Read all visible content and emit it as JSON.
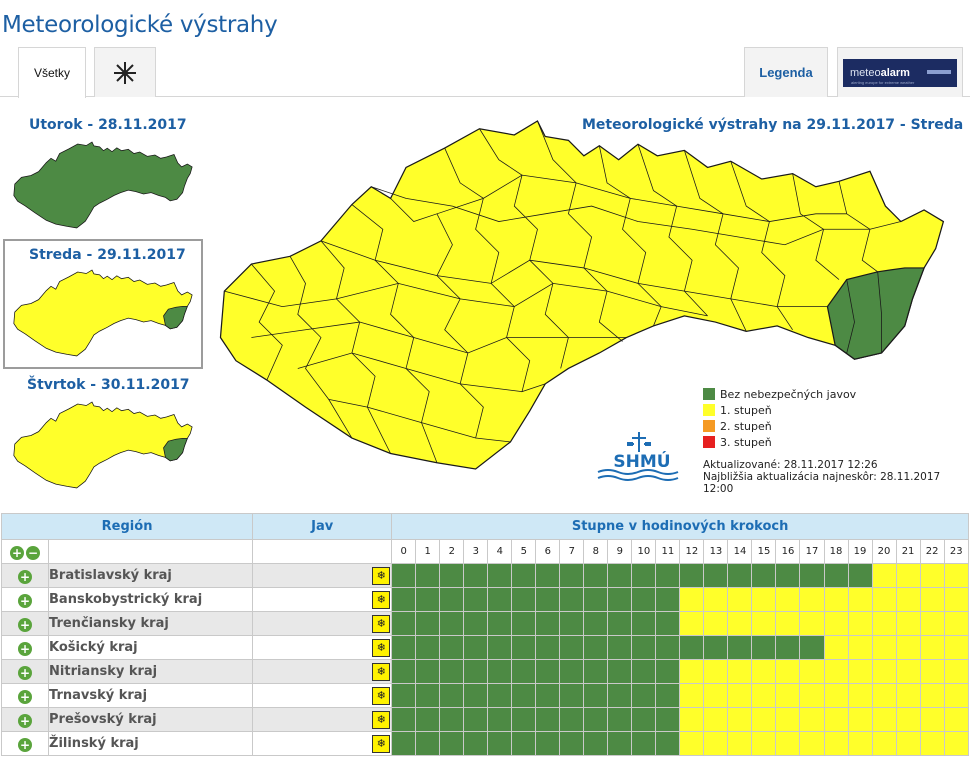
{
  "header": {
    "title": "Meteorologické výstrahy"
  },
  "tabs": {
    "all_label": "Všetky",
    "icon_tab": "snowflake-icon",
    "legend_label": "Legenda",
    "meteoalarm": {
      "prefix": "meteo",
      "bold": "alarm",
      "tagline": "alerting europe for extreme weather"
    }
  },
  "days": [
    {
      "label": "Utorok - 28.11.2017"
    },
    {
      "label": "Streda - 29.11.2017"
    },
    {
      "label": "Štvrtok - 30.11.2017"
    }
  ],
  "main_map": {
    "title": "Meteorologické výstrahy na 29.11.2017 - Streda"
  },
  "colors": {
    "green": "#4d8a44",
    "yellow": "#ffff2a",
    "orange": "#f59a23",
    "red": "#e62020",
    "header_blue": "#1d5fa3"
  },
  "legend": [
    {
      "label": "Bez nebezpečných javov",
      "color": "#4d8a44"
    },
    {
      "label": "1. stupeň",
      "color": "#ffff2a"
    },
    {
      "label": "2. stupeň",
      "color": "#f59a23"
    },
    {
      "label": "3. stupeň",
      "color": "#e62020"
    }
  ],
  "updated": {
    "line1": "Aktualizované: 28.11.2017 12:26",
    "line2": "Najbližšia aktualizácia najneskôr: 28.11.2017 12:00"
  },
  "logo": {
    "text": "SHMÚ"
  },
  "table": {
    "col_region": "Región",
    "col_jav": "Jav",
    "col_hours": "Stupne v hodinových krokoch",
    "hours": [
      "0",
      "1",
      "2",
      "3",
      "4",
      "5",
      "6",
      "7",
      "8",
      "9",
      "10",
      "11",
      "12",
      "13",
      "14",
      "15",
      "16",
      "17",
      "18",
      "19",
      "20",
      "21",
      "22",
      "23"
    ],
    "jav_icon": "snowflake-icon",
    "rows": [
      {
        "region": "Bratislavský kraj",
        "levels": [
          0,
          0,
          0,
          0,
          0,
          0,
          0,
          0,
          0,
          0,
          0,
          0,
          0,
          0,
          0,
          0,
          0,
          0,
          0,
          0,
          1,
          1,
          1,
          1
        ]
      },
      {
        "region": "Banskobystrický kraj",
        "levels": [
          0,
          0,
          0,
          0,
          0,
          0,
          0,
          0,
          0,
          0,
          0,
          0,
          1,
          1,
          1,
          1,
          1,
          1,
          1,
          1,
          1,
          1,
          1,
          1
        ]
      },
      {
        "region": "Trenčiansky kraj",
        "levels": [
          0,
          0,
          0,
          0,
          0,
          0,
          0,
          0,
          0,
          0,
          0,
          0,
          1,
          1,
          1,
          1,
          1,
          1,
          1,
          1,
          1,
          1,
          1,
          1
        ]
      },
      {
        "region": "Košický kraj",
        "levels": [
          0,
          0,
          0,
          0,
          0,
          0,
          0,
          0,
          0,
          0,
          0,
          0,
          0,
          0,
          0,
          0,
          0,
          0,
          1,
          1,
          1,
          1,
          1,
          1
        ]
      },
      {
        "region": "Nitriansky kraj",
        "levels": [
          0,
          0,
          0,
          0,
          0,
          0,
          0,
          0,
          0,
          0,
          0,
          0,
          1,
          1,
          1,
          1,
          1,
          1,
          1,
          1,
          1,
          1,
          1,
          1
        ]
      },
      {
        "region": "Trnavský kraj",
        "levels": [
          0,
          0,
          0,
          0,
          0,
          0,
          0,
          0,
          0,
          0,
          0,
          0,
          1,
          1,
          1,
          1,
          1,
          1,
          1,
          1,
          1,
          1,
          1,
          1
        ]
      },
      {
        "region": "Prešovský kraj",
        "levels": [
          0,
          0,
          0,
          0,
          0,
          0,
          0,
          0,
          0,
          0,
          0,
          0,
          1,
          1,
          1,
          1,
          1,
          1,
          1,
          1,
          1,
          1,
          1,
          1
        ]
      },
      {
        "region": "Žilinský kraj",
        "levels": [
          0,
          0,
          0,
          0,
          0,
          0,
          0,
          0,
          0,
          0,
          0,
          0,
          1,
          1,
          1,
          1,
          1,
          1,
          1,
          1,
          1,
          1,
          1,
          1
        ]
      }
    ]
  }
}
